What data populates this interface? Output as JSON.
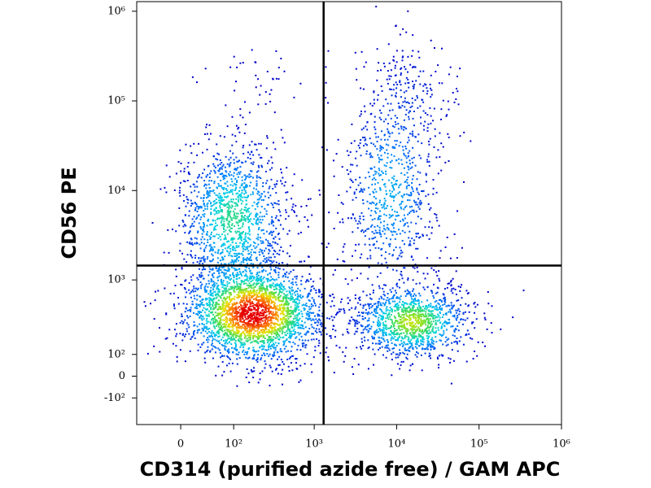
{
  "chart_data": {
    "type": "scatter",
    "x_label": "CD314 (purified azide free) / GAM APC",
    "y_label": "CD56 PE",
    "xscale": "biexponential",
    "yscale": "biexponential",
    "xlim": [
      -75,
      1000000
    ],
    "ylim": [
      -270,
      1280000
    ],
    "xticks": [
      0,
      {
        "value": 100,
        "label": "10²"
      },
      {
        "value": 1000,
        "label": "10³"
      },
      {
        "value": 10000,
        "label": "10⁴"
      },
      {
        "value": 100000,
        "label": "10⁵"
      },
      {
        "value": 1000000,
        "label": "10⁶"
      }
    ],
    "yticks": [
      {
        "value": -100,
        "label": "-10²"
      },
      0,
      {
        "value": 100,
        "label": "10²"
      },
      {
        "value": 1000,
        "label": "10³"
      },
      {
        "value": 10000,
        "label": "10⁴"
      },
      {
        "value": 100000,
        "label": "10⁵"
      },
      {
        "value": 1000000,
        "label": "10⁶"
      }
    ],
    "gates": {
      "x": 1300,
      "y": 1450
    }
  }
}
